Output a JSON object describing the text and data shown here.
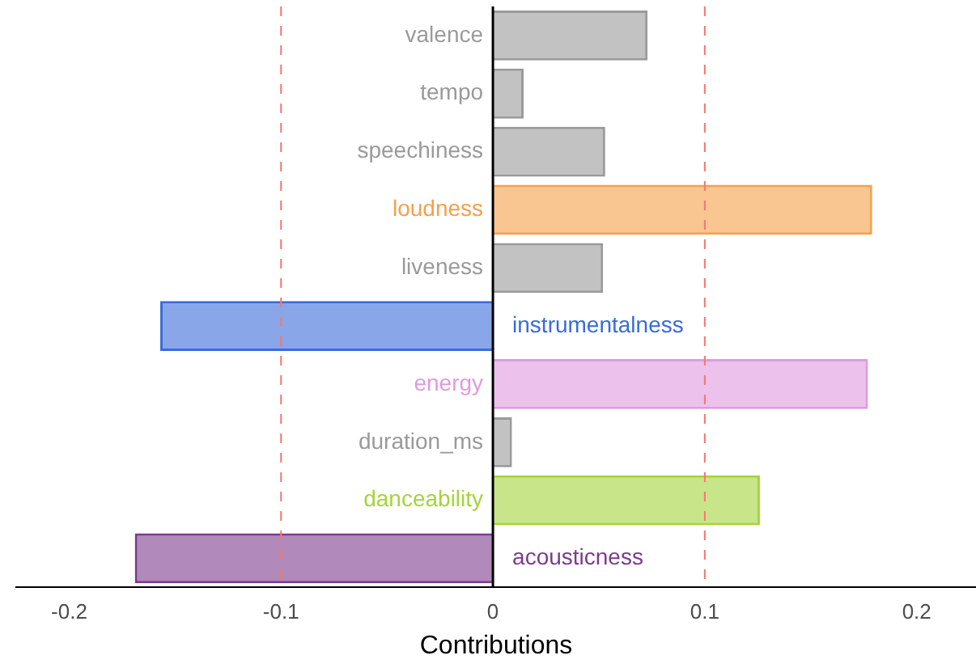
{
  "chart_data": {
    "type": "bar",
    "orientation": "horizontal",
    "xlabel": "Contributions",
    "categories": [
      "valence",
      "tempo",
      "speechiness",
      "loudness",
      "liveness",
      "instrumentalness",
      "energy",
      "duration_ms",
      "danceability",
      "acousticness"
    ],
    "values": [
      0.073,
      0.0145,
      0.053,
      0.179,
      0.052,
      -0.157,
      0.177,
      0.009,
      0.126,
      -0.169
    ],
    "colors": [
      "#9a9a9a",
      "#9a9a9a",
      "#9a9a9a",
      "#f5a04a",
      "#9a9a9a",
      "#3a6bd8",
      "#e09ae0",
      "#9a9a9a",
      "#a5d43a",
      "#7d3a8c"
    ],
    "xlim": [
      -0.225,
      0.228
    ],
    "xticks": [
      -0.2,
      -0.1,
      0,
      0.1,
      0.2
    ],
    "tick_labels": "x",
    "grid": false,
    "legend": false,
    "ref_lines": [
      {
        "axis": "x",
        "value": -0.1,
        "color": "#f8766d",
        "line_style": "dashed"
      },
      {
        "axis": "x",
        "value": 0.1,
        "color": "#f8766d",
        "line_style": "dashed"
      }
    ]
  }
}
